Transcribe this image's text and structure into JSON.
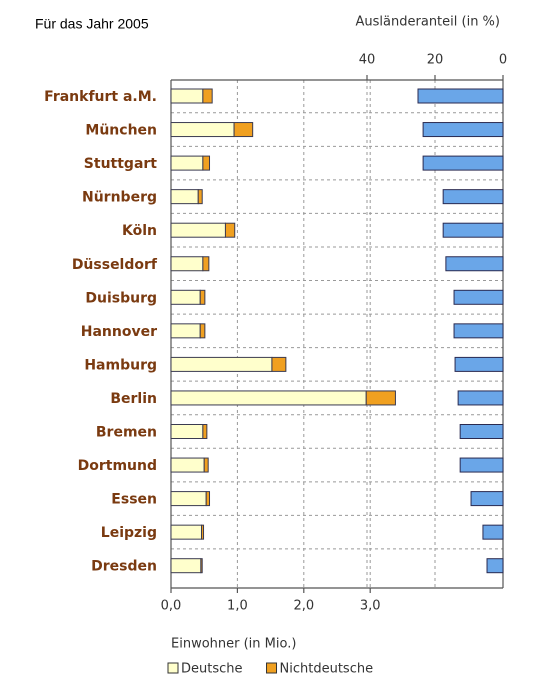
{
  "chart_data": [
    {
      "type": "stacked-hbar",
      "title": "Für das Jahr 2005",
      "categories": [
        "Frankfurt a.M.",
        "München",
        "Stuttgart",
        "Nürnberg",
        "Köln",
        "Düsseldorf",
        "Duisburg",
        "Hannover",
        "Hamburg",
        "Berlin",
        "Bremen",
        "Dortmund",
        "Essen",
        "Leipzig",
        "Dresden"
      ],
      "series": [
        {
          "name": "Deutsche",
          "color": "#ffffcc",
          "values": [
            0.48,
            0.95,
            0.48,
            0.41,
            0.82,
            0.48,
            0.44,
            0.44,
            1.52,
            2.94,
            0.48,
            0.5,
            0.53,
            0.46,
            0.45
          ]
        },
        {
          "name": "Nichtdeutsche",
          "color": "#f0a020",
          "values": [
            0.14,
            0.28,
            0.1,
            0.06,
            0.14,
            0.09,
            0.07,
            0.07,
            0.21,
            0.44,
            0.06,
            0.06,
            0.05,
            0.03,
            0.02
          ]
        }
      ],
      "xlabel": "Einwohner (in Mio.)",
      "xlim": [
        0,
        5
      ],
      "xticks": [
        {
          "value": 0,
          "label": "0,0"
        },
        {
          "value": 1,
          "label": "1,0"
        },
        {
          "value": 2,
          "label": "2,0"
        },
        {
          "value": 3,
          "label": "3,0"
        }
      ],
      "grid": true,
      "legend": "bottom-left"
    },
    {
      "type": "hbar",
      "xlabel": "Ausländeranteil (in %)",
      "color": "#6aa6e8",
      "values": [
        25,
        23.5,
        23.5,
        17.6,
        17.6,
        16.8,
        14.4,
        14.4,
        14.1,
        13.2,
        12.6,
        12.6,
        9.4,
        5.9,
        4.7
      ],
      "xlim": [
        0,
        40
      ],
      "xticks": [
        40,
        20,
        0
      ],
      "x_reversed": true
    }
  ]
}
